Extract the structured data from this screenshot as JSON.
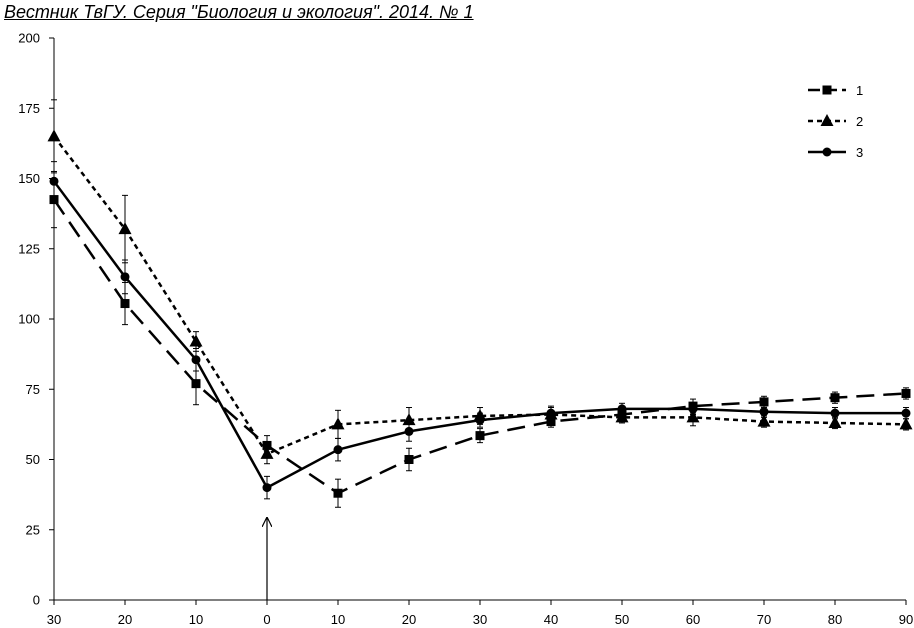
{
  "header": {
    "title": "Вестник ТвГУ. Серия \"Биология и экология\". 2014. № 1"
  },
  "chart_data": {
    "type": "line",
    "title": "",
    "xlabel": "",
    "ylabel": "",
    "x": [
      30,
      20,
      10,
      0,
      10,
      20,
      30,
      40,
      50,
      60,
      70,
      80,
      90
    ],
    "x_tick_labels": [
      "30",
      "20",
      "10",
      "0",
      "10",
      "20",
      "30",
      "40",
      "50",
      "60",
      "70",
      "80",
      "90"
    ],
    "ylim": [
      0,
      200
    ],
    "y_ticks": [
      0,
      25,
      50,
      75,
      100,
      125,
      150,
      175,
      200
    ],
    "grid": false,
    "legend_position": "top-right",
    "annotation": "arrow at x = 0",
    "series": [
      {
        "name": "1",
        "marker": "square",
        "line_style": "long-dash",
        "values": [
          142.5,
          105.5,
          77,
          55,
          38,
          50,
          58.5,
          63.5,
          66,
          69,
          70.5,
          72,
          73.5
        ],
        "errors": [
          10,
          7.5,
          7.5,
          3.5,
          5,
          4,
          2.5,
          2,
          1.5,
          2.5,
          2,
          2,
          2
        ]
      },
      {
        "name": "2",
        "marker": "triangle",
        "line_style": "short-dash",
        "values": [
          165,
          132,
          92,
          52,
          62.5,
          64,
          65.5,
          66,
          65,
          65,
          63.5,
          63,
          62.5
        ],
        "errors": [
          13,
          12,
          3.5,
          3.5,
          5,
          4.5,
          3,
          3,
          2,
          3,
          2,
          2,
          2
        ]
      },
      {
        "name": "3",
        "marker": "circle",
        "line_style": "solid",
        "values": [
          149,
          115,
          85.5,
          40,
          53.5,
          60,
          64,
          66.5,
          68,
          68,
          67,
          66.5,
          66.5
        ],
        "errors": [
          7,
          6,
          4,
          4,
          4,
          3.5,
          2.5,
          2,
          2,
          2,
          2,
          2,
          2
        ]
      }
    ]
  }
}
